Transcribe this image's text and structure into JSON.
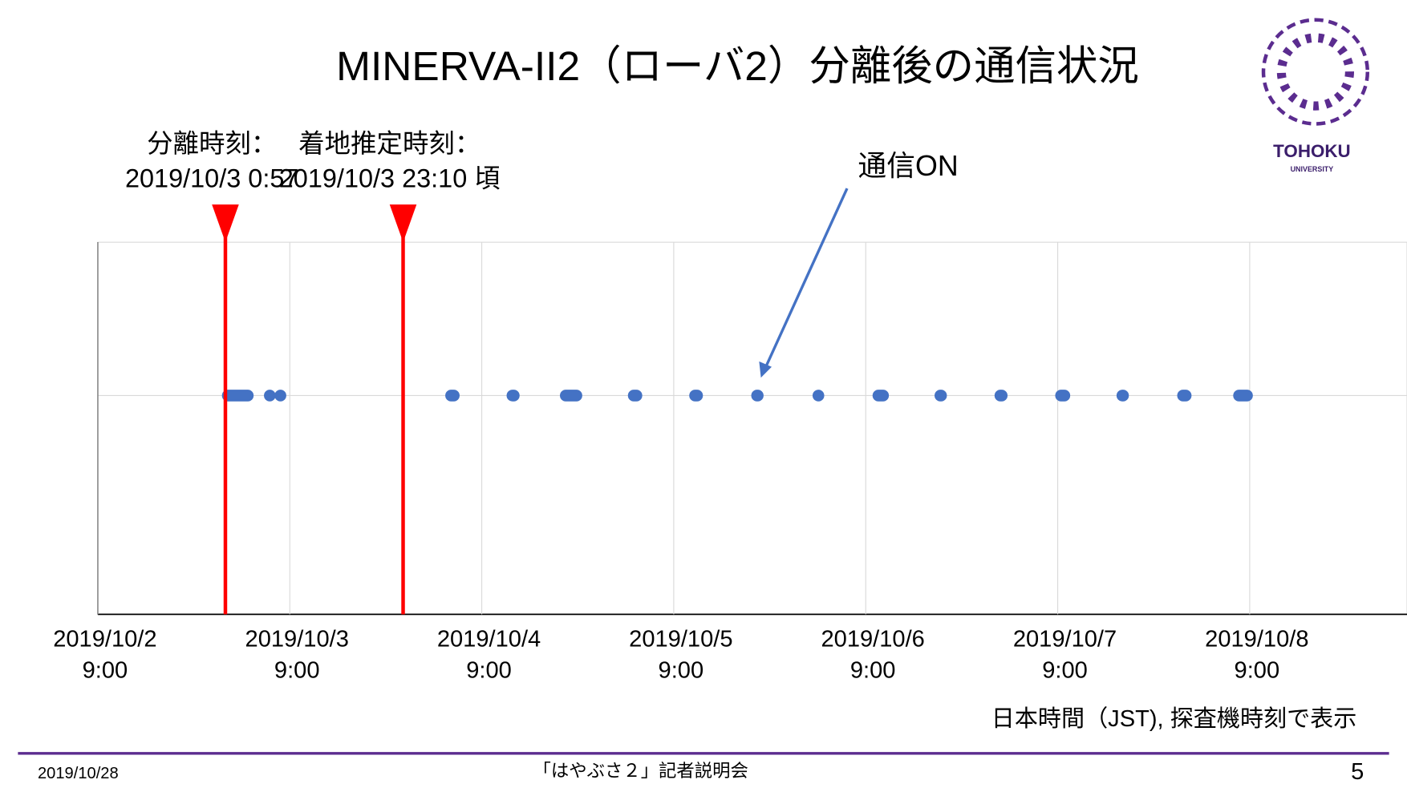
{
  "title": "MINERVA-II2（ローバ2）分離後の通信状況",
  "logo": {
    "name": "TOHOKU",
    "subname": "UNIVERSITY"
  },
  "chart_data": {
    "type": "timeline",
    "xlim": [
      "2019-10-02 09:00",
      "2019-10-09 04:40"
    ],
    "xticks": [
      {
        "value": "2019-10-02 09:00",
        "label": [
          "2019/10/2",
          "9:00"
        ]
      },
      {
        "value": "2019-10-03 09:00",
        "label": [
          "2019/10/3",
          "9:00"
        ]
      },
      {
        "value": "2019-10-04 09:00",
        "label": [
          "2019/10/4",
          "9:00"
        ]
      },
      {
        "value": "2019-10-05 09:00",
        "label": [
          "2019/10/5",
          "9:00"
        ]
      },
      {
        "value": "2019-10-06 09:00",
        "label": [
          "2019/10/6",
          "9:00"
        ]
      },
      {
        "value": "2019-10-07 09:00",
        "label": [
          "2019/10/7",
          "9:00"
        ]
      },
      {
        "value": "2019-10-08 09:00",
        "label": [
          "2019/10/8",
          "9:00"
        ]
      }
    ],
    "grid": true,
    "events": [
      {
        "label": [
          "分離時刻：",
          "2019/10/3 0:57"
        ],
        "x": "2019-10-03 00:57",
        "color": "#ff0000"
      },
      {
        "label": [
          "着地推定時刻：",
          "2019/10/3 23:10 頃"
        ],
        "x": "2019-10-03 23:10",
        "color": "#ff0000"
      }
    ],
    "series": [
      {
        "name": "通信ON",
        "color": "#4472c4",
        "start": [
          "2019-10-03 01:15",
          "2019-10-03 06:30",
          "2019-10-03 07:50",
          "2019-10-04 05:10",
          "2019-10-04 12:50",
          "2019-10-04 19:30",
          "2019-10-05 04:00",
          "2019-10-05 11:40",
          "2019-10-05 19:25",
          "2019-10-06 03:05",
          "2019-10-06 10:35",
          "2019-10-06 18:20",
          "2019-10-07 01:50",
          "2019-10-07 09:25",
          "2019-10-07 17:05",
          "2019-10-08 00:40",
          "2019-10-08 07:40"
        ],
        "end": [
          "2019-10-03 03:45",
          "2019-10-03 06:30",
          "2019-10-03 07:50",
          "2019-10-04 05:30",
          "2019-10-04 13:00",
          "2019-10-04 20:50",
          "2019-10-05 04:20",
          "2019-10-05 11:55",
          "2019-10-05 19:30",
          "2019-10-06 03:05",
          "2019-10-06 11:10",
          "2019-10-06 18:25",
          "2019-10-07 02:00",
          "2019-10-07 09:50",
          "2019-10-07 17:10",
          "2019-10-08 01:00",
          "2019-10-08 08:40"
        ]
      }
    ],
    "note": "日本時間（JST), 探査機時刻で表示"
  },
  "footer": {
    "date": "2019/10/28",
    "event": "「はやぶさ２」記者説明会",
    "page": "5"
  }
}
